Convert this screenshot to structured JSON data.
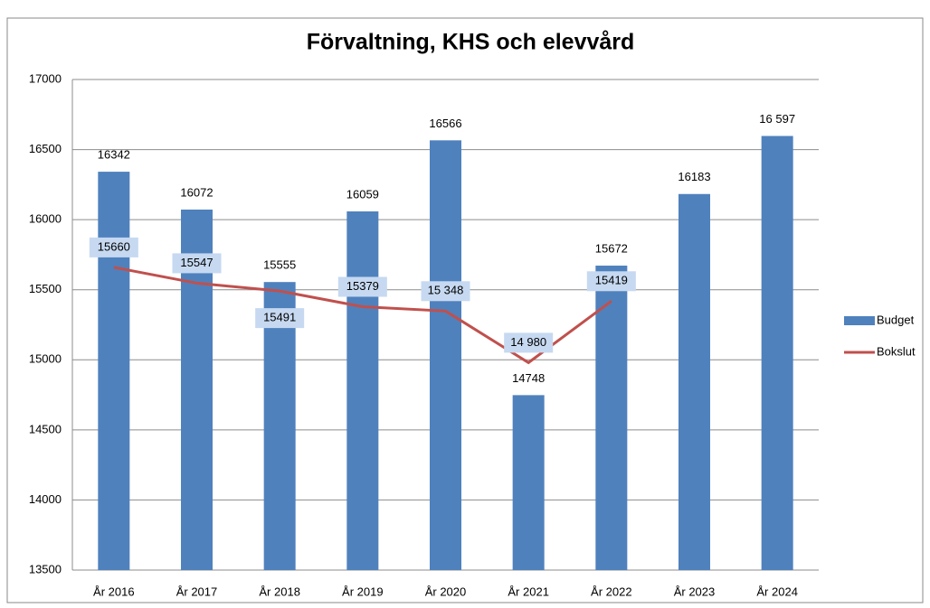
{
  "chart_data": {
    "type": "bar_line",
    "title": "Förvaltning, KHS och elevvård",
    "categories": [
      "År 2016",
      "År 2017",
      "År 2018",
      "År 2019",
      "År 2020",
      "År 2021",
      "År 2022",
      "År 2023",
      "År 2024"
    ],
    "series": [
      {
        "name": "Budget",
        "type": "bar",
        "color": "#4f81bd",
        "values": [
          16342,
          16072,
          15555,
          16059,
          16566,
          14748,
          15672,
          16183,
          16597
        ],
        "value_labels": [
          "16342",
          "16072",
          "15555",
          "16059",
          "16566",
          "14748",
          "15672",
          "16183",
          "16 597"
        ]
      },
      {
        "name": "Bokslut",
        "type": "line",
        "color": "#c0504d",
        "values": [
          15660,
          15547,
          15491,
          15379,
          15348,
          14980,
          15419,
          null,
          null
        ],
        "value_labels": [
          "15660",
          "15547",
          "15491",
          "15379",
          "15 348",
          "14 980",
          "15419",
          null,
          null
        ]
      }
    ],
    "ylim": [
      13500,
      17000
    ],
    "yticks": [
      13500,
      14000,
      14500,
      15000,
      15500,
      16000,
      16500,
      17000
    ],
    "grid": true,
    "legend": "right"
  }
}
